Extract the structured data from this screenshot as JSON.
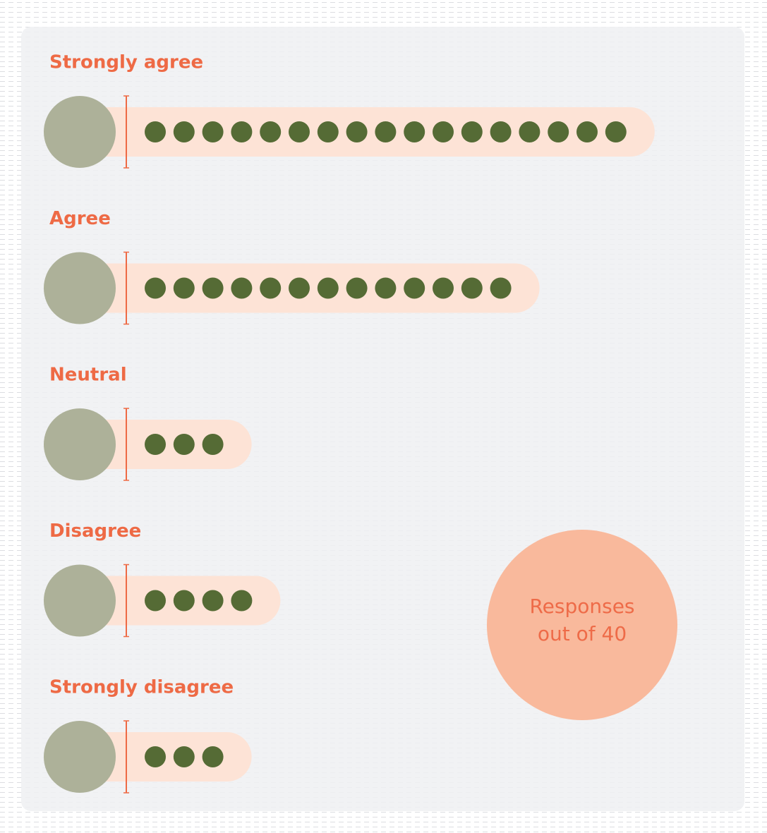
{
  "chart_data": {
    "type": "pictograph",
    "categories": [
      "Strongly agree",
      "Agree",
      "Neutral",
      "Disagree",
      "Strongly disagree"
    ],
    "values": [
      17,
      13,
      3,
      4,
      3
    ],
    "annotation": [
      "Responses",
      "out of 40"
    ],
    "label_color": "#ee6a45",
    "bar_color": "#fde3d6",
    "dot_color": "#556b35",
    "marker_color": "#adb199",
    "annotation_color": "#f9b99c"
  }
}
